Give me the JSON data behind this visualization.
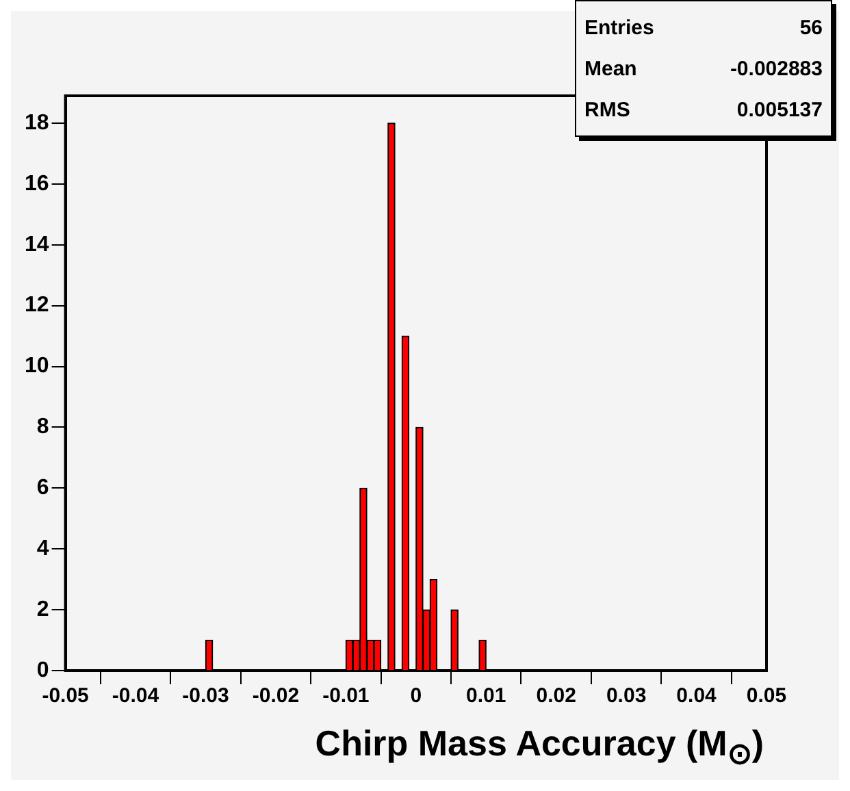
{
  "chart_data": {
    "type": "histogram",
    "xlabel": "Chirp Mass Accuracy (M$_{⊙}$)",
    "annotations": [
      "Entries",
      "56",
      "Mean",
      "-0.002883",
      "RMS",
      "0.005137"
    ],
    "bins": [
      -0.05,
      -0.049,
      -0.048,
      -0.047,
      -0.046,
      -0.045,
      -0.044,
      -0.043,
      -0.042,
      -0.041,
      -0.04,
      -0.039,
      -0.038,
      -0.037,
      -0.036,
      -0.035,
      -0.034,
      -0.033,
      -0.032,
      -0.031,
      -0.03,
      -0.029,
      -0.028,
      -0.027,
      -0.026,
      -0.025,
      -0.024,
      -0.023,
      -0.022,
      -0.021,
      -0.02,
      -0.019,
      -0.018,
      -0.017,
      -0.016,
      -0.015,
      -0.014,
      -0.013,
      -0.012,
      -0.011,
      -0.01,
      -0.009,
      -0.008,
      -0.007,
      -0.006,
      -0.005,
      -0.004,
      -0.003,
      -0.002,
      -0.001,
      0,
      0.001,
      0.002,
      0.003,
      0.004,
      0.005,
      0.006,
      0.007,
      0.008,
      0.009,
      0.01,
      0.011,
      0.012,
      0.013,
      0.014,
      0.015,
      0.016,
      0.017,
      0.018,
      0.019,
      0.02,
      0.021,
      0.022,
      0.023,
      0.024,
      0.025,
      0.026,
      0.027,
      0.028,
      0.029,
      0.03,
      0.031,
      0.032,
      0.033,
      0.034,
      0.035,
      0.036,
      0.037,
      0.038,
      0.039,
      0.04,
      0.041,
      0.042,
      0.043,
      0.044,
      0.045,
      0.046,
      0.047,
      0.048,
      0.049,
      0.05
    ],
    "values": [
      0,
      0,
      0,
      0,
      0,
      0,
      0,
      0,
      0,
      0,
      0,
      0,
      0,
      0,
      0,
      0,
      0,
      0,
      0,
      0,
      1,
      0,
      0,
      0,
      0,
      0,
      0,
      0,
      0,
      0,
      0,
      0,
      0,
      0,
      0,
      0,
      0,
      0,
      0,
      0,
      1,
      1,
      6,
      1,
      1,
      0,
      18,
      0,
      11,
      0,
      8,
      2,
      3,
      0,
      0,
      2,
      0,
      0,
      0,
      1,
      0,
      0,
      0,
      0,
      0,
      0,
      0,
      0,
      0,
      0,
      0,
      0,
      0,
      0,
      0,
      0,
      0,
      0,
      0,
      0,
      0,
      0,
      0,
      0,
      0,
      0,
      0,
      0,
      0,
      0,
      0,
      0,
      0,
      0,
      0,
      0,
      0,
      0,
      0,
      0
    ],
    "color": "#ff0000",
    "xlim": [
      -0.05,
      0.05
    ],
    "xticks": [
      -0.05,
      -0.04,
      -0.03,
      -0.02,
      -0.01,
      0,
      0.01,
      0.02,
      0.03,
      0.04,
      0.05
    ],
    "ylim": [
      0,
      18.9
    ],
    "yticks": [
      0,
      2,
      4,
      6,
      8,
      10,
      12,
      14,
      16,
      18
    ],
    "legend": false
  }
}
